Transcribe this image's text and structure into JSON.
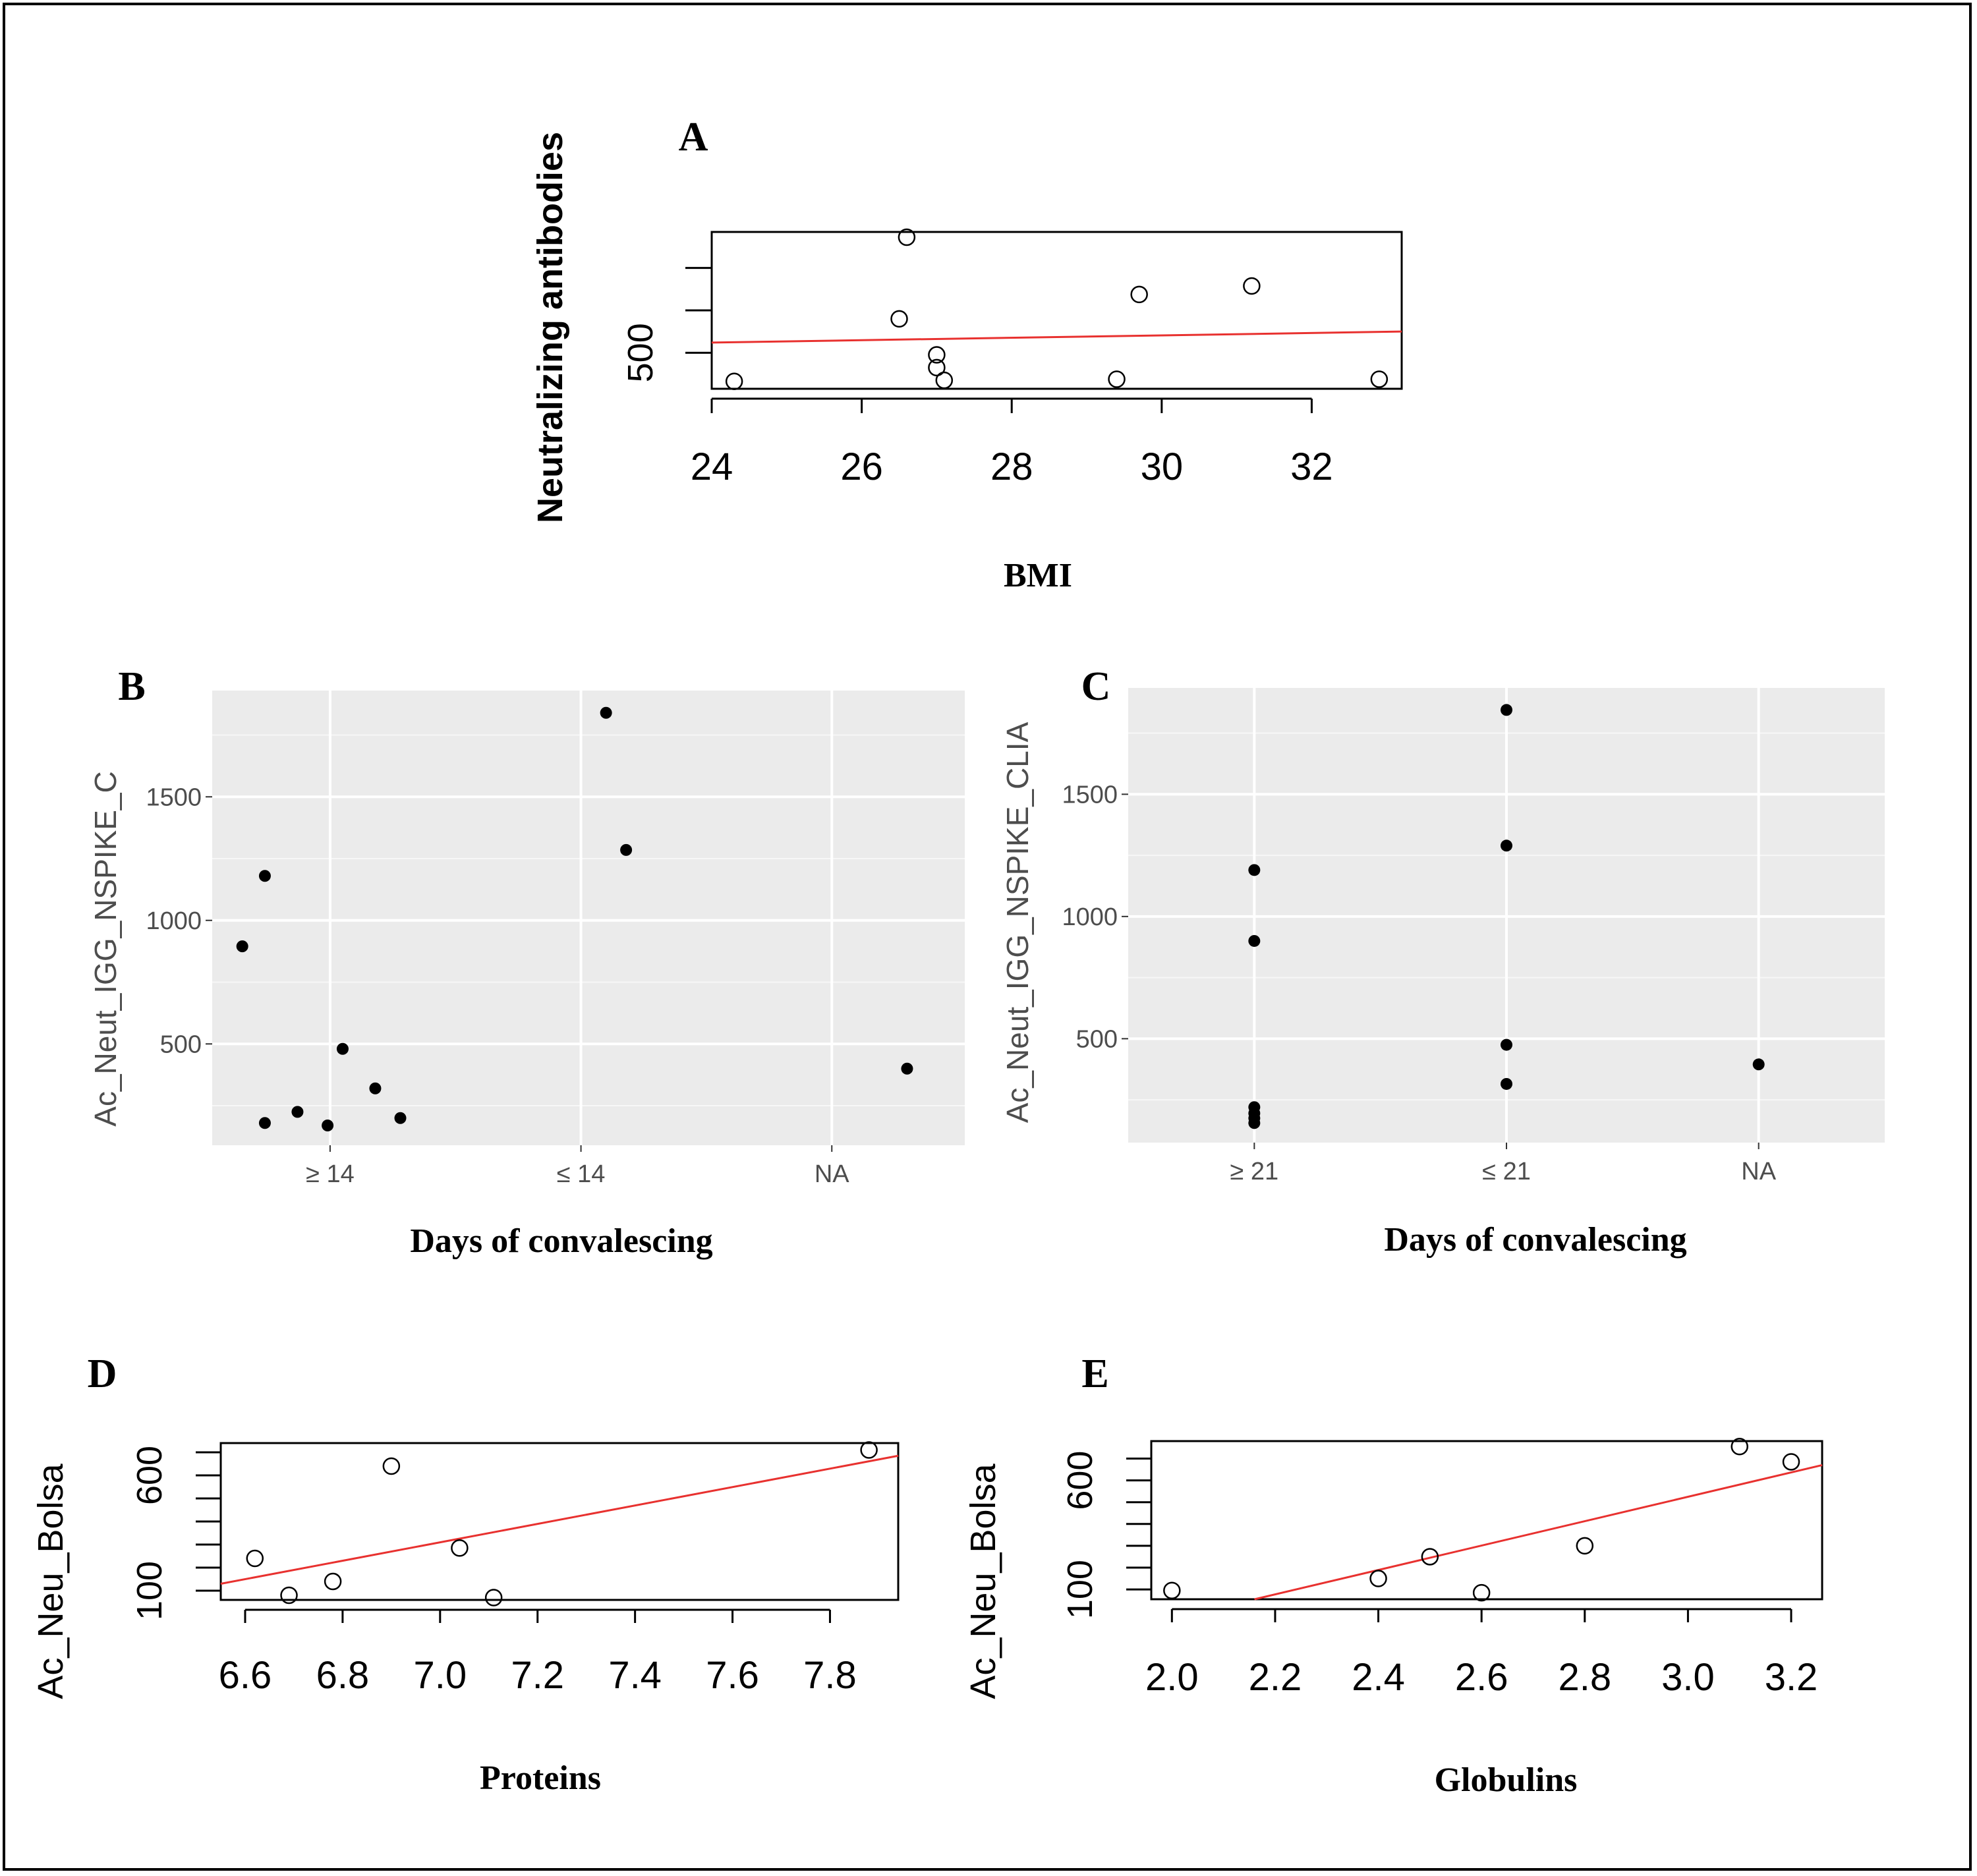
{
  "chart_data": [
    {
      "id": "A",
      "panel_label": "A",
      "type": "scatter",
      "style": "base",
      "title": "",
      "xlabel": "BMI",
      "ylabel": "Neutralizing antibodies",
      "xlim": [
        24,
        33.2
      ],
      "ylim": [
        330,
        1070
      ],
      "xticks": [
        24,
        26,
        28,
        30,
        32
      ],
      "xtick_labels": [
        "24",
        "26",
        "28",
        "30",
        "32"
      ],
      "yticks": [
        500,
        700,
        900
      ],
      "ytick_labels": [
        "500",
        "",
        ""
      ],
      "points": [
        {
          "x": 24.3,
          "y": 365
        },
        {
          "x": 26.5,
          "y": 660
        },
        {
          "x": 26.6,
          "y": 1045
        },
        {
          "x": 27.0,
          "y": 490
        },
        {
          "x": 27.0,
          "y": 430
        },
        {
          "x": 27.1,
          "y": 370
        },
        {
          "x": 29.4,
          "y": 375
        },
        {
          "x": 29.7,
          "y": 775
        },
        {
          "x": 31.2,
          "y": 815
        },
        {
          "x": 32.9,
          "y": 375
        }
      ],
      "fit_line": {
        "x": [
          24,
          33.2
        ],
        "y": [
          548,
          600
        ],
        "color": "#e8312f"
      }
    },
    {
      "id": "B",
      "panel_label": "B",
      "type": "scatter",
      "style": "ggplot",
      "title": "",
      "xlabel": "Days of convalescing",
      "ylabel": "Ac_Neut_IGG_NSPIKE_C",
      "categories": [
        "≥ 14",
        "≤ 14",
        "NA"
      ],
      "ylim": [
        90,
        1930
      ],
      "yticks": [
        500,
        1000,
        1500
      ],
      "ytick_labels": [
        "500",
        "1000",
        "1500"
      ],
      "points": [
        {
          "cat": 0,
          "dx": -0.35,
          "y": 895
        },
        {
          "cat": 0,
          "dx": -0.26,
          "y": 1180
        },
        {
          "cat": 0,
          "dx": -0.26,
          "y": 180
        },
        {
          "cat": 0,
          "dx": -0.13,
          "y": 225
        },
        {
          "cat": 0,
          "dx": -0.01,
          "y": 170
        },
        {
          "cat": 0,
          "dx": 0.05,
          "y": 480
        },
        {
          "cat": 0,
          "dx": 0.18,
          "y": 320
        },
        {
          "cat": 0,
          "dx": 0.28,
          "y": 200
        },
        {
          "cat": 1,
          "dx": 0.1,
          "y": 1840
        },
        {
          "cat": 1,
          "dx": 0.18,
          "y": 1285
        },
        {
          "cat": 2,
          "dx": 0.3,
          "y": 400
        }
      ]
    },
    {
      "id": "C",
      "panel_label": "C",
      "type": "scatter",
      "style": "ggplot",
      "title": "",
      "xlabel": "Days of convalescing",
      "ylabel": "Ac_Neut_IGG_NSPIKE_CLIA",
      "categories": [
        "≥ 21",
        "≤ 21",
        "NA"
      ],
      "ylim": [
        75,
        1935
      ],
      "yticks": [
        500,
        1000,
        1500
      ],
      "ytick_labels": [
        "500",
        "1000",
        "1500"
      ],
      "points": [
        {
          "cat": 0,
          "dx": 0,
          "y": 1190
        },
        {
          "cat": 0,
          "dx": 0,
          "y": 900
        },
        {
          "cat": 0,
          "dx": 0,
          "y": 220
        },
        {
          "cat": 0,
          "dx": 0,
          "y": 195
        },
        {
          "cat": 0,
          "dx": 0,
          "y": 175
        },
        {
          "cat": 0,
          "dx": 0,
          "y": 155
        },
        {
          "cat": 1,
          "dx": 0,
          "y": 1845
        },
        {
          "cat": 1,
          "dx": 0,
          "y": 1290
        },
        {
          "cat": 1,
          "dx": 0,
          "y": 475
        },
        {
          "cat": 1,
          "dx": 0,
          "y": 315
        },
        {
          "cat": 2,
          "dx": 0,
          "y": 395
        }
      ]
    },
    {
      "id": "D",
      "panel_label": "D",
      "type": "scatter",
      "style": "base",
      "title": "",
      "xlabel": "Proteins",
      "ylabel": "Ac_Neu_Bolsa",
      "xlim": [
        6.55,
        7.94
      ],
      "ylim": [
        60,
        740
      ],
      "xticks": [
        6.6,
        6.8,
        7.0,
        7.2,
        7.4,
        7.6,
        7.8
      ],
      "xtick_labels": [
        "6.6",
        "6.8",
        "7.0",
        "7.2",
        "7.4",
        "7.6",
        "7.8"
      ],
      "yticks": [
        100,
        200,
        300,
        400,
        500,
        600,
        700
      ],
      "ytick_labels": [
        "100",
        "",
        "",
        "",
        "",
        "600",
        ""
      ],
      "points": [
        {
          "x": 6.62,
          "y": 240
        },
        {
          "x": 6.69,
          "y": 80
        },
        {
          "x": 6.78,
          "y": 140
        },
        {
          "x": 6.9,
          "y": 640
        },
        {
          "x": 7.04,
          "y": 285
        },
        {
          "x": 7.11,
          "y": 70
        },
        {
          "x": 7.88,
          "y": 710
        }
      ],
      "fit_line": {
        "x": [
          6.55,
          7.94
        ],
        "y": [
          130,
          685
        ],
        "color": "#e8312f"
      }
    },
    {
      "id": "E",
      "panel_label": "E",
      "type": "scatter",
      "style": "base",
      "title": "",
      "xlabel": "Globulins",
      "ylabel": "Ac_Neu_Bolsa",
      "xlim": [
        1.96,
        3.26
      ],
      "ylim": [
        55,
        780
      ],
      "xticks": [
        2.0,
        2.2,
        2.4,
        2.6,
        2.8,
        3.0,
        3.2
      ],
      "xtick_labels": [
        "2.0",
        "2.2",
        "2.4",
        "2.6",
        "2.8",
        "3.0",
        "3.2"
      ],
      "yticks": [
        100,
        200,
        300,
        400,
        500,
        600,
        700
      ],
      "ytick_labels": [
        "100",
        "",
        "",
        "",
        "",
        "600",
        ""
      ],
      "points": [
        {
          "x": 2.0,
          "y": 95
        },
        {
          "x": 2.4,
          "y": 150
        },
        {
          "x": 2.5,
          "y": 250
        },
        {
          "x": 2.6,
          "y": 85
        },
        {
          "x": 2.8,
          "y": 300
        },
        {
          "x": 3.1,
          "y": 755
        },
        {
          "x": 3.2,
          "y": 685
        }
      ],
      "fit_line": {
        "x": [
          2.16,
          3.26
        ],
        "y": [
          55,
          670
        ],
        "color": "#e8312f"
      }
    }
  ]
}
